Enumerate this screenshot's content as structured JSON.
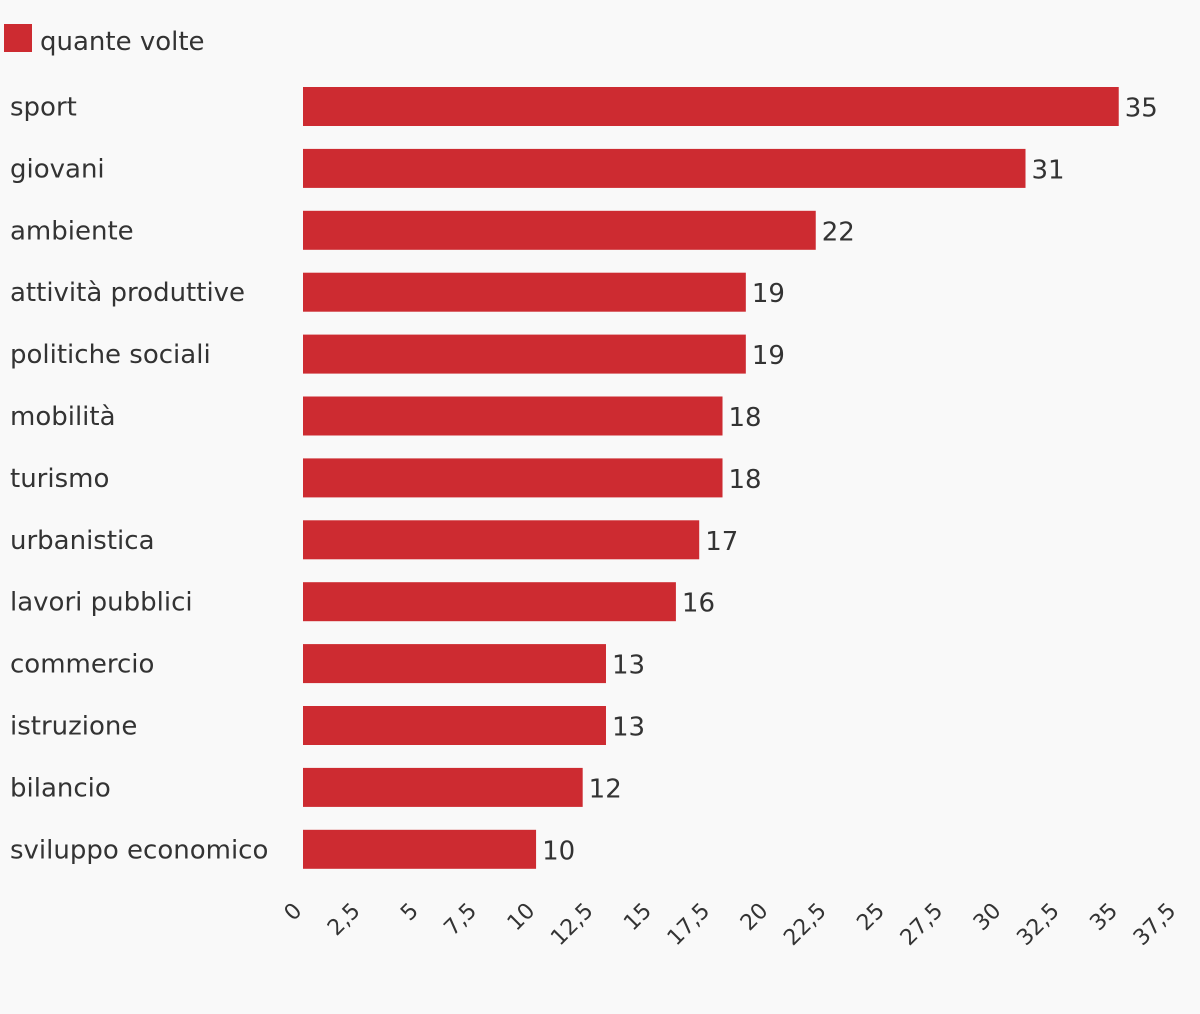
{
  "chart_data": {
    "type": "bar",
    "orientation": "horizontal",
    "categories": [
      "sport",
      "giovani",
      "ambiente",
      "attività produttive",
      "politiche sociali",
      "mobilità",
      "turismo",
      "urbanistica",
      "lavori pubblici",
      "commercio",
      "istruzione",
      "bilancio",
      "sviluppo economico"
    ],
    "series": [
      {
        "name": "quante volte",
        "color": "#cd2b31",
        "values": [
          35,
          31,
          22,
          19,
          19,
          18,
          18,
          17,
          16,
          13,
          13,
          12,
          10
        ]
      }
    ],
    "xlim": [
      0,
      37.5
    ],
    "xticks": [
      0,
      2.5,
      5,
      7.5,
      10,
      12.5,
      15,
      17.5,
      20,
      22.5,
      25,
      27.5,
      30,
      32.5,
      35,
      37.5
    ],
    "xtick_labels": [
      "0",
      "2,5",
      "5",
      "7,5",
      "10",
      "12,5",
      "15",
      "17,5",
      "20",
      "22,5",
      "25",
      "27,5",
      "30",
      "32,5",
      "35",
      "37,5"
    ],
    "legend": {
      "position": "top-left",
      "label": "quante volte"
    },
    "grid": false,
    "data_labels": true,
    "title": "",
    "xlabel": "",
    "ylabel": ""
  }
}
